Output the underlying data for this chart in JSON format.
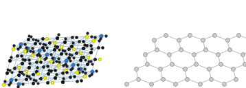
{
  "bg_color": "#ffffff",
  "bond_color_left": "#a0bece",
  "bond_color_right": "#aaaaaa",
  "atom_S_color": "#f0f000",
  "atom_N_color": "#101010",
  "atom_Ag_color": "#3377bb",
  "atom_C_color": "#202020",
  "atom_right_color": "#cccccc",
  "atom_right_edge": "#888888",
  "figsize": [
    3.58,
    1.28
  ],
  "dpi": 100
}
